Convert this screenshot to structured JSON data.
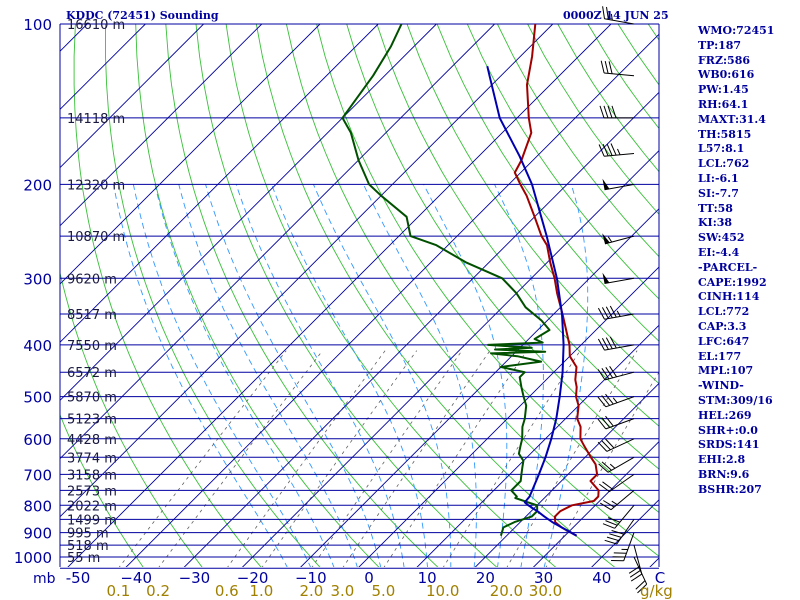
{
  "header": {
    "station": "KDDC (72451) Sounding",
    "time": "0000Z 14 JUN 25"
  },
  "colors": {
    "isobar": "#0000a0",
    "isotherm": "#00009c",
    "dry_adiabat": "#39c039",
    "moist_adiabat": "#3399ff",
    "mixing_ratio": "#606060",
    "temperature": "#a00000",
    "dewpoint": "#005000",
    "parcel": "#0000b0",
    "label": "#00009c",
    "mixing_label": "#a08000",
    "wind": "#000000"
  },
  "indices": [
    "WMO:72451",
    "TP:187",
    "FRZ:586",
    "WB0:616",
    "PW:1.45",
    "RH:64.1",
    "MAXT:31.4",
    "TH:5815",
    "L57:8.1",
    "LCL:762",
    "LI:-6.1",
    "SI:-7.7",
    "TT:58",
    "KI:38",
    "SW:452",
    "EI:-4.4",
    "-PARCEL-",
    "CAPE:1992",
    "CINH:114",
    "LCL:772",
    "CAP:3.3",
    "LFC:647",
    "EL:177",
    "MPL:107",
    "-WIND-",
    "STM:309/16",
    "HEL:269",
    "SHR+:0.0",
    "SRDS:141",
    "EHI:2.8",
    "BRN:9.6",
    "BSHR:207"
  ],
  "chart_data": {
    "type": "line",
    "subtype": "skew-T log-P thermodynamic diagram",
    "pressure_axis": {
      "labels": [
        {
          "p": 100,
          "text": "100"
        },
        {
          "p": 200,
          "text": "200"
        },
        {
          "p": 300,
          "text": "300"
        },
        {
          "p": 400,
          "text": "400"
        },
        {
          "p": 500,
          "text": "500"
        },
        {
          "p": 600,
          "text": "600"
        },
        {
          "p": 700,
          "text": "700"
        },
        {
          "p": 800,
          "text": "800"
        },
        {
          "p": 900,
          "text": "900"
        },
        {
          "p": 1000,
          "text": "1000"
        }
      ],
      "unit_label": "mb",
      "range": [
        100,
        1050
      ],
      "scale": "log"
    },
    "isobars": [
      100,
      150,
      200,
      250,
      300,
      350,
      400,
      450,
      500,
      550,
      600,
      650,
      700,
      750,
      800,
      850,
      900,
      950,
      1000,
      1050
    ],
    "heights": [
      {
        "p": 100,
        "text": "16610 m"
      },
      {
        "p": 150,
        "text": "14118 m"
      },
      {
        "p": 200,
        "text": "12320 m"
      },
      {
        "p": 250,
        "text": "10870 m"
      },
      {
        "p": 300,
        "text": "9620 m"
      },
      {
        "p": 350,
        "text": "8517 m"
      },
      {
        "p": 400,
        "text": "7550 m"
      },
      {
        "p": 450,
        "text": "6572 m"
      },
      {
        "p": 500,
        "text": "5870 m"
      },
      {
        "p": 550,
        "text": "5123 m"
      },
      {
        "p": 600,
        "text": "4428 m"
      },
      {
        "p": 650,
        "text": "3774 m"
      },
      {
        "p": 700,
        "text": "3158 m"
      },
      {
        "p": 750,
        "text": "2573 m"
      },
      {
        "p": 800,
        "text": "2022 m"
      },
      {
        "p": 850,
        "text": "1499 m"
      },
      {
        "p": 900,
        "text": "995 m"
      },
      {
        "p": 950,
        "text": "518 m"
      },
      {
        "p": 1000,
        "text": "55 m"
      }
    ],
    "temperature_axis": {
      "ticks": [
        {
          "t": -50,
          "text": "-50"
        },
        {
          "t": -40,
          "text": "−40"
        },
        {
          "t": -30,
          "text": "−30"
        },
        {
          "t": -20,
          "text": "−20"
        },
        {
          "t": -10,
          "text": "−10"
        },
        {
          "t": 0,
          "text": "0"
        },
        {
          "t": 10,
          "text": "10"
        },
        {
          "t": 20,
          "text": "20"
        },
        {
          "t": 30,
          "text": "30"
        },
        {
          "t": 40,
          "text": "40"
        },
        {
          "t": 50,
          "text": "C"
        }
      ],
      "unit": "C"
    },
    "mixing_ratio_axis": {
      "values": [
        {
          "w": 0.1,
          "text": "0.1"
        },
        {
          "w": 0.2,
          "text": "0.2"
        },
        {
          "w": 0.6,
          "text": "0.6"
        },
        {
          "w": 1.0,
          "text": "1.0"
        },
        {
          "w": 2.0,
          "text": "2.0"
        },
        {
          "w": 3.0,
          "text": "3.0"
        },
        {
          "w": 5.0,
          "text": "5.0"
        },
        {
          "w": 10.0,
          "text": "10.0"
        },
        {
          "w": 20.0,
          "text": "20.0"
        },
        {
          "w": 30.0,
          "text": "30.0"
        }
      ],
      "unit": "g/kg"
    },
    "series": [
      {
        "key": "temperature",
        "points": [
          [
            912,
            32
          ],
          [
            880,
            28
          ],
          [
            860,
            26
          ],
          [
            840,
            25
          ],
          [
            820,
            25
          ],
          [
            800,
            26
          ],
          [
            785,
            29
          ],
          [
            770,
            29
          ],
          [
            750,
            28
          ],
          [
            720,
            25
          ],
          [
            700,
            25
          ],
          [
            670,
            23
          ],
          [
            650,
            21
          ],
          [
            620,
            18
          ],
          [
            600,
            16
          ],
          [
            570,
            14
          ],
          [
            550,
            12
          ],
          [
            520,
            10
          ],
          [
            500,
            8
          ],
          [
            480,
            6.5
          ],
          [
            465,
            5
          ],
          [
            440,
            3
          ],
          [
            420,
            0
          ],
          [
            400,
            -2
          ],
          [
            380,
            -4.5
          ],
          [
            350,
            -8.5
          ],
          [
            320,
            -13
          ],
          [
            300,
            -16
          ],
          [
            280,
            -19.5
          ],
          [
            260,
            -23
          ],
          [
            250,
            -25.5
          ],
          [
            230,
            -30
          ],
          [
            210,
            -35
          ],
          [
            200,
            -38
          ],
          [
            190,
            -41
          ],
          [
            180,
            -42
          ],
          [
            160,
            -45
          ],
          [
            150,
            -48
          ],
          [
            130,
            -54
          ],
          [
            115,
            -58
          ],
          [
            100,
            -63
          ]
        ]
      },
      {
        "key": "dewpoint",
        "points": [
          [
            912,
            19
          ],
          [
            880,
            18
          ],
          [
            860,
            19
          ],
          [
            840,
            21
          ],
          [
            820,
            21
          ],
          [
            800,
            20
          ],
          [
            790,
            18
          ],
          [
            775,
            15
          ],
          [
            770,
            15
          ],
          [
            750,
            13
          ],
          [
            720,
            13
          ],
          [
            700,
            12
          ],
          [
            680,
            11
          ],
          [
            660,
            10
          ],
          [
            640,
            8
          ],
          [
            620,
            7
          ],
          [
            600,
            6
          ],
          [
            570,
            4
          ],
          [
            550,
            3
          ],
          [
            520,
            1
          ],
          [
            500,
            -1
          ],
          [
            480,
            -3
          ],
          [
            460,
            -5
          ],
          [
            450,
            -5
          ],
          [
            440,
            -10
          ],
          [
            430,
            -4
          ],
          [
            420,
            -9
          ],
          [
            415,
            -14
          ],
          [
            412,
            -5
          ],
          [
            408,
            -14
          ],
          [
            405,
            -8
          ],
          [
            400,
            -16
          ],
          [
            396,
            -7
          ],
          [
            390,
            -9
          ],
          [
            375,
            -8
          ],
          [
            360,
            -11
          ],
          [
            340,
            -16
          ],
          [
            320,
            -20
          ],
          [
            300,
            -25
          ],
          [
            280,
            -34
          ],
          [
            260,
            -42
          ],
          [
            250,
            -48
          ],
          [
            230,
            -52
          ],
          [
            210,
            -60
          ],
          [
            200,
            -64
          ],
          [
            180,
            -70
          ],
          [
            160,
            -76
          ],
          [
            150,
            -80
          ],
          [
            125,
            -82
          ],
          [
            110,
            -84
          ],
          [
            100,
            -86
          ]
        ]
      },
      {
        "key": "parcel",
        "points": [
          [
            912,
            32
          ],
          [
            880,
            28
          ],
          [
            860,
            25.5
          ],
          [
            840,
            23.2
          ],
          [
            820,
            21
          ],
          [
            800,
            18.5
          ],
          [
            790,
            17.4
          ],
          [
            770,
            17.2
          ],
          [
            750,
            16.6
          ],
          [
            700,
            15
          ],
          [
            650,
            13.2
          ],
          [
            600,
            11
          ],
          [
            550,
            8.4
          ],
          [
            500,
            5.2
          ],
          [
            450,
            1.5
          ],
          [
            400,
            -3
          ],
          [
            350,
            -8.6
          ],
          [
            300,
            -15.6
          ],
          [
            250,
            -24.6
          ],
          [
            200,
            -36
          ],
          [
            177,
            -43
          ],
          [
            150,
            -53
          ],
          [
            125,
            -62
          ],
          [
            120,
            -64
          ]
        ]
      }
    ],
    "winds": [
      [
        1000,
        155,
        20
      ],
      [
        950,
        165,
        30
      ],
      [
        900,
        200,
        35
      ],
      [
        850,
        215,
        40
      ],
      [
        800,
        220,
        30
      ],
      [
        750,
        230,
        25
      ],
      [
        700,
        235,
        20
      ],
      [
        650,
        240,
        25
      ],
      [
        600,
        245,
        30
      ],
      [
        550,
        250,
        30
      ],
      [
        500,
        250,
        35
      ],
      [
        450,
        255,
        40
      ],
      [
        400,
        260,
        40
      ],
      [
        350,
        260,
        45
      ],
      [
        300,
        260,
        50
      ],
      [
        250,
        255,
        55
      ],
      [
        200,
        260,
        50
      ],
      [
        175,
        265,
        45
      ],
      [
        150,
        270,
        40
      ],
      [
        125,
        275,
        30
      ],
      [
        100,
        280,
        25
      ]
    ]
  }
}
